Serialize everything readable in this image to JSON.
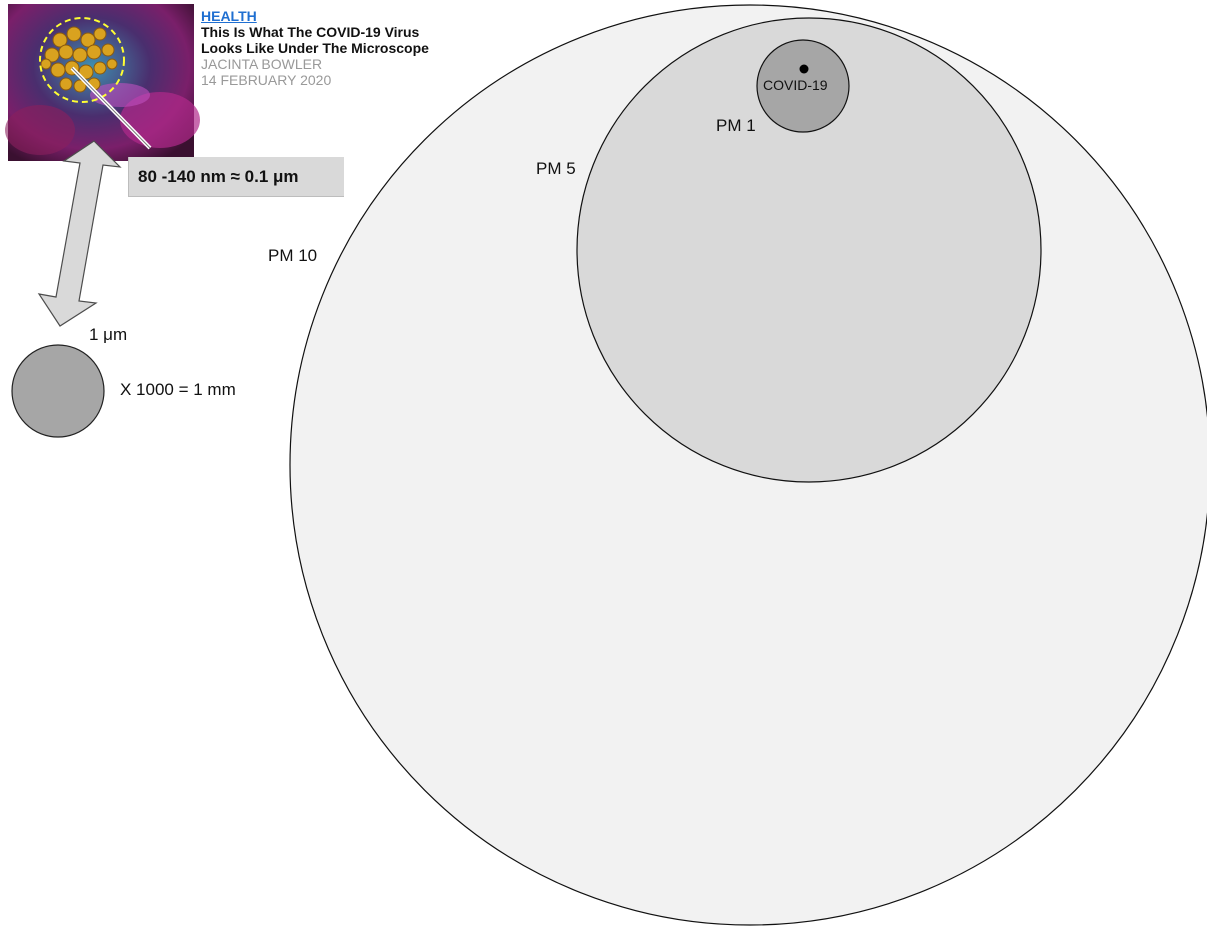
{
  "article": {
    "category": "HEALTH",
    "title_line1": "This Is What The COVID-19 Virus",
    "title_line2": "Looks Like Under The Microscope",
    "author": "JACINTA BOWLER",
    "date": "14 FEBRUARY 2020"
  },
  "size_box": "80 -140 nm ≈ 0.1 μm",
  "labels": {
    "micron": "1 μm",
    "scale": "X 1000 = 1 mm",
    "pm10": "PM 10",
    "pm5": "PM 5",
    "pm1": "PM 1",
    "covid": "COVID-19"
  },
  "colors": {
    "pm10_fill": "#f2f2f2",
    "pm5_fill": "#d9d9d9",
    "pm1_fill": "#a6a6a6",
    "arrow_fill": "#d9d9d9",
    "link": "#1f6fd1"
  }
}
